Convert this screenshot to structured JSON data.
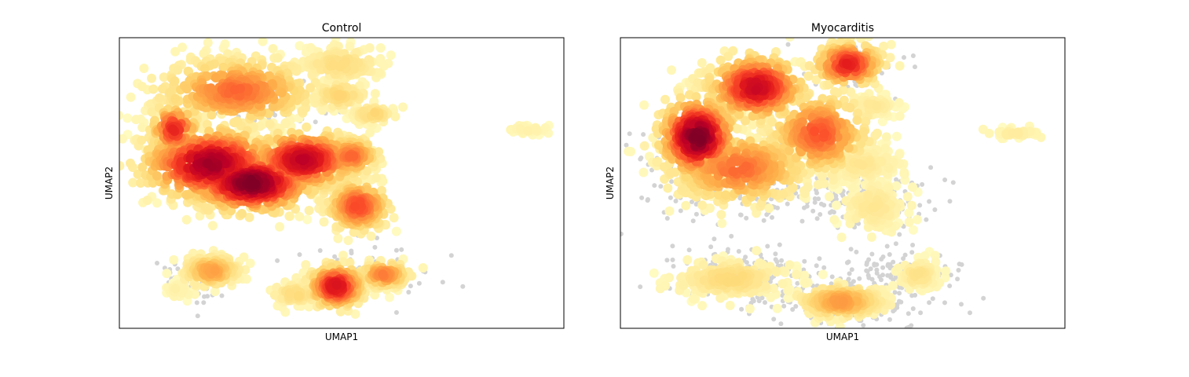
{
  "chart_data": [
    {
      "type": "scatter",
      "subtype": "umap-density-embedding",
      "title": "Control",
      "xlabel": "UMAP1",
      "ylabel": "UMAP2",
      "ticks": "none",
      "grid": false,
      "legend": "none",
      "colormap": "YlOrRd",
      "background_points_color": "#d3d3d3",
      "clusters": [
        {
          "center": [
            2.3,
            6.2
          ],
          "spread": [
            1.1,
            0.45
          ],
          "density": 0.55,
          "count": 420
        },
        {
          "center": [
            0.6,
            5.2
          ],
          "spread": [
            0.35,
            0.35
          ],
          "density": 0.7,
          "count": 110
        },
        {
          "center": [
            1.6,
            4.3
          ],
          "spread": [
            1.0,
            0.5
          ],
          "density": 0.92,
          "count": 520
        },
        {
          "center": [
            2.7,
            3.8
          ],
          "spread": [
            0.9,
            0.4
          ],
          "density": 1.0,
          "count": 520
        },
        {
          "center": [
            4.1,
            4.4
          ],
          "spread": [
            0.8,
            0.4
          ],
          "density": 0.85,
          "count": 420
        },
        {
          "center": [
            5.4,
            4.5
          ],
          "spread": [
            0.4,
            0.25
          ],
          "density": 0.55,
          "count": 140
        },
        {
          "center": [
            5.6,
            3.2
          ],
          "spread": [
            0.45,
            0.35
          ],
          "density": 0.62,
          "count": 230
        },
        {
          "center": [
            5.1,
            6.9
          ],
          "spread": [
            0.6,
            0.25
          ],
          "density": 0.18,
          "count": 170
        },
        {
          "center": [
            5.1,
            6.1
          ],
          "spread": [
            0.4,
            0.2
          ],
          "density": 0.22,
          "count": 80
        },
        {
          "center": [
            6.0,
            5.6
          ],
          "spread": [
            0.3,
            0.12
          ],
          "density": 0.22,
          "count": 60
        },
        {
          "center": [
            1.6,
            1.5
          ],
          "spread": [
            0.4,
            0.22
          ],
          "density": 0.4,
          "count": 170
        },
        {
          "center": [
            0.7,
            1.0
          ],
          "spread": [
            0.2,
            0.12
          ],
          "density": 0.06,
          "count": 40
        },
        {
          "center": [
            3.9,
            0.9
          ],
          "spread": [
            0.35,
            0.15
          ],
          "density": 0.2,
          "count": 80
        },
        {
          "center": [
            5.0,
            1.1
          ],
          "spread": [
            0.4,
            0.3
          ],
          "density": 0.78,
          "count": 240
        },
        {
          "center": [
            6.3,
            1.4
          ],
          "spread": [
            0.35,
            0.18
          ],
          "density": 0.5,
          "count": 110
        },
        {
          "center": [
            10.3,
            5.2
          ],
          "spread": [
            0.3,
            0.06
          ],
          "density": 0.05,
          "count": 40
        }
      ],
      "grey_points_at": [
        {
          "center": [
            1.0,
            1.2
          ],
          "spread": [
            0.45,
            0.3
          ],
          "count": 70
        },
        {
          "center": [
            5.8,
            1.5
          ],
          "spread": [
            0.9,
            0.3
          ],
          "count": 60
        },
        {
          "center": [
            3.2,
            5.9
          ],
          "spread": [
            1.0,
            0.35
          ],
          "count": 50
        },
        {
          "center": [
            10.0,
            5.25
          ],
          "spread": [
            0.1,
            0.03
          ],
          "count": 6
        }
      ]
    },
    {
      "type": "scatter",
      "subtype": "umap-density-embedding",
      "title": "Myocarditis",
      "xlabel": "UMAP1",
      "ylabel": "UMAP2",
      "ticks": "none",
      "grid": false,
      "legend": "none",
      "colormap": "YlOrRd",
      "background_points_color": "#d3d3d3",
      "clusters": [
        {
          "center": [
            1.2,
            5.0
          ],
          "spread": [
            0.55,
            0.55
          ],
          "density": 1.0,
          "count": 380
        },
        {
          "center": [
            2.8,
            6.3
          ],
          "spread": [
            0.7,
            0.45
          ],
          "density": 0.82,
          "count": 330
        },
        {
          "center": [
            2.3,
            4.2
          ],
          "spread": [
            1.0,
            0.5
          ],
          "density": 0.55,
          "count": 380
        },
        {
          "center": [
            4.5,
            5.1
          ],
          "spread": [
            0.7,
            0.55
          ],
          "density": 0.6,
          "count": 330
        },
        {
          "center": [
            5.3,
            6.9
          ],
          "spread": [
            0.5,
            0.3
          ],
          "density": 0.72,
          "count": 200
        },
        {
          "center": [
            5.6,
            4.3
          ],
          "spread": [
            0.6,
            0.25
          ],
          "density": 0.12,
          "count": 160
        },
        {
          "center": [
            6.0,
            5.8
          ],
          "spread": [
            0.35,
            0.15
          ],
          "density": 0.12,
          "count": 60
        },
        {
          "center": [
            6.0,
            3.2
          ],
          "spread": [
            0.45,
            0.35
          ],
          "density": 0.12,
          "count": 180
        },
        {
          "center": [
            2.1,
            1.3
          ],
          "spread": [
            0.8,
            0.25
          ],
          "density": 0.2,
          "count": 230
        },
        {
          "center": [
            5.1,
            0.7
          ],
          "spread": [
            0.6,
            0.22
          ],
          "density": 0.42,
          "count": 260
        },
        {
          "center": [
            7.2,
            1.4
          ],
          "spread": [
            0.3,
            0.2
          ],
          "density": 0.15,
          "count": 90
        },
        {
          "center": [
            9.8,
            5.1
          ],
          "spread": [
            0.4,
            0.06
          ],
          "density": 0.08,
          "count": 40
        }
      ],
      "grey_points_at": [
        {
          "center": [
            1.3,
            4.2
          ],
          "spread": [
            1.1,
            0.7
          ],
          "count": 160
        },
        {
          "center": [
            4.5,
            3.5
          ],
          "spread": [
            1.5,
            0.4
          ],
          "count": 140
        },
        {
          "center": [
            6.0,
            3.3
          ],
          "spread": [
            0.6,
            0.45
          ],
          "count": 140
        },
        {
          "center": [
            2.3,
            1.4
          ],
          "spread": [
            0.9,
            0.35
          ],
          "count": 150
        },
        {
          "center": [
            5.3,
            0.8
          ],
          "spread": [
            1.2,
            0.4
          ],
          "count": 200
        },
        {
          "center": [
            6.8,
            1.5
          ],
          "spread": [
            0.7,
            0.3
          ],
          "count": 80
        },
        {
          "center": [
            5.6,
            6.9
          ],
          "spread": [
            0.8,
            0.4
          ],
          "count": 50
        }
      ]
    }
  ]
}
